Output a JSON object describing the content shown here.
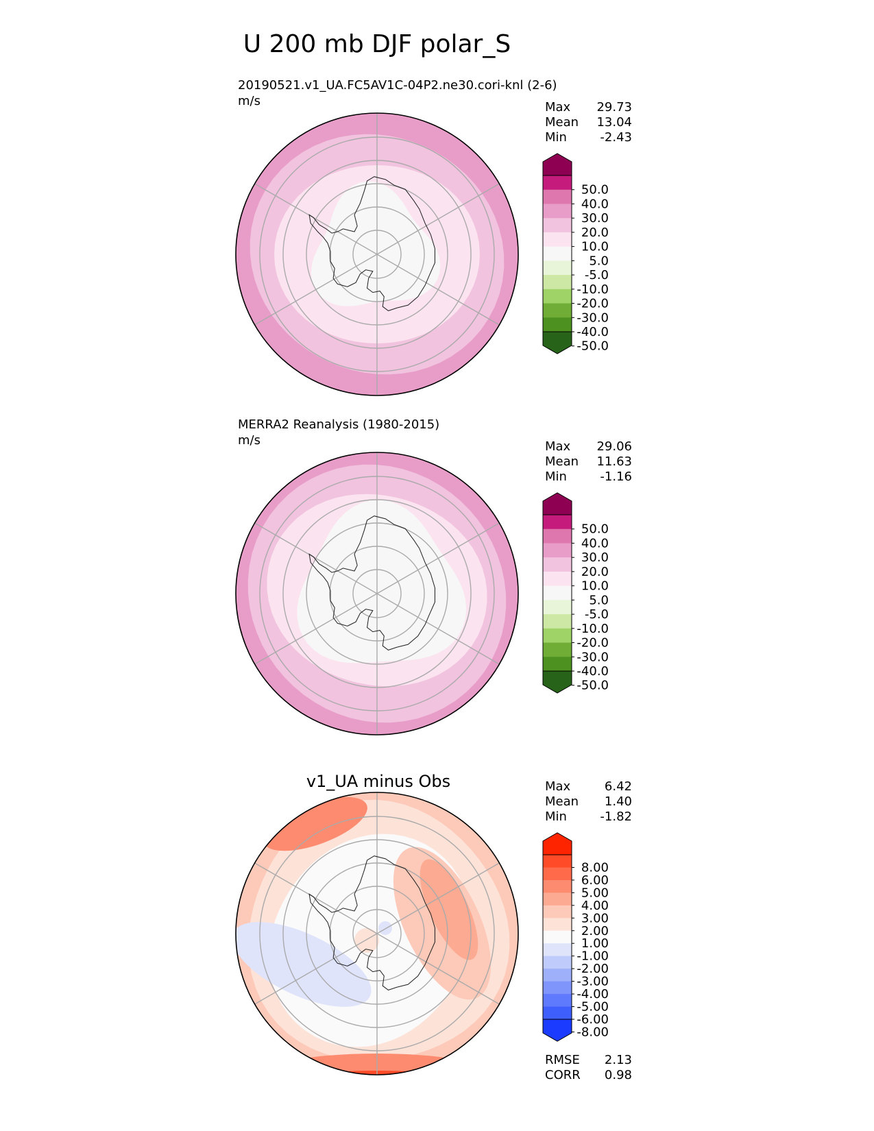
{
  "figure": {
    "title": "U 200 mb DJF polar_S",
    "panels": [
      {
        "title_left": "20190521.v1_UA.FC5AV1C-04P2.ne30.cori-knl (2-6)",
        "units": "m/s",
        "title_center": "",
        "stats": [
          {
            "label": "Max",
            "value": "29.73"
          },
          {
            "label": "Mean",
            "value": "13.04"
          },
          {
            "label": "Min",
            "value": "-2.43"
          }
        ],
        "colorbar": {
          "extend": "both",
          "ticks": [
            "50.0",
            "40.0",
            "30.0",
            "20.0",
            "10.0",
            "5.0",
            "-5.0",
            "-10.0",
            "-20.0",
            "-30.0",
            "-40.0",
            "-50.0"
          ],
          "colors": [
            "#8e0152",
            "#c51b7d",
            "#de77ae",
            "#e89dc8",
            "#f1c3df",
            "#fbe3ef",
            "#f7f7f7",
            "#e9f5d9",
            "#cce8a4",
            "#9fd267",
            "#6fad37",
            "#4d9221",
            "#276419"
          ]
        }
      },
      {
        "title_left": "MERRA2 Reanalysis (1980-2015)",
        "units": "m/s",
        "title_center": "",
        "stats": [
          {
            "label": "Max",
            "value": "29.06"
          },
          {
            "label": "Mean",
            "value": "11.63"
          },
          {
            "label": "Min",
            "value": "-1.16"
          }
        ],
        "colorbar": {
          "extend": "both",
          "ticks": [
            "50.0",
            "40.0",
            "30.0",
            "20.0",
            "10.0",
            "5.0",
            "-5.0",
            "-10.0",
            "-20.0",
            "-30.0",
            "-40.0",
            "-50.0"
          ],
          "colors": [
            "#8e0152",
            "#c51b7d",
            "#de77ae",
            "#e89dc8",
            "#f1c3df",
            "#fbe3ef",
            "#f7f7f7",
            "#e9f5d9",
            "#cce8a4",
            "#9fd267",
            "#6fad37",
            "#4d9221",
            "#276419"
          ]
        }
      },
      {
        "title_left": "",
        "units": "",
        "title_center": "v1_UA minus Obs",
        "stats": [
          {
            "label": "Max",
            "value": "6.42"
          },
          {
            "label": "Mean",
            "value": "1.40"
          },
          {
            "label": "Min",
            "value": "-1.82"
          }
        ],
        "extra_stats": [
          {
            "label": "RMSE",
            "value": "2.13"
          },
          {
            "label": "CORR",
            "value": "0.98"
          }
        ],
        "colorbar": {
          "extend": "both",
          "ticks": [
            "8.00",
            "6.00",
            "5.00",
            "4.00",
            "3.00",
            "2.00",
            "1.00",
            "-1.00",
            "-2.00",
            "-3.00",
            "-4.00",
            "-5.00",
            "-6.00",
            "-8.00"
          ],
          "colors": [
            "#ff2400",
            "#ff4b28",
            "#ff6a4a",
            "#fd8b70",
            "#fdaa92",
            "#fdc9b8",
            "#fde2d8",
            "#fafafa",
            "#dfe4fb",
            "#bfcbfa",
            "#9fb0fb",
            "#7f95fc",
            "#5f7afd",
            "#3f5ffd",
            "#1b3cfe"
          ]
        }
      }
    ]
  },
  "chart_data": [
    {
      "type": "heatmap",
      "projection": "south-polar-stereographic",
      "title": "20190521.v1_UA.FC5AV1C-04P2.ne30.cori-knl (2-6)",
      "units": "m/s",
      "field_by_latitude": [
        {
          "lat_range": [
            -90,
            -80
          ],
          "value_range": [
            -5,
            5
          ]
        },
        {
          "lat_range": [
            -80,
            -65
          ],
          "value_range": [
            5,
            10
          ]
        },
        {
          "lat_range": [
            -65,
            -55
          ],
          "value_range": [
            10,
            20
          ]
        },
        {
          "lat_range": [
            -55,
            -40
          ],
          "value_range": [
            20,
            30
          ]
        }
      ],
      "stats": {
        "max": 29.73,
        "mean": 13.04,
        "min": -2.43
      },
      "levels": [
        -50,
        -40,
        -30,
        -20,
        -10,
        -5,
        5,
        10,
        20,
        30,
        40,
        50
      ],
      "grid": true
    },
    {
      "type": "heatmap",
      "projection": "south-polar-stereographic",
      "title": "MERRA2 Reanalysis (1980-2015)",
      "units": "m/s",
      "field_by_latitude": [
        {
          "lat_range": [
            -90,
            -72
          ],
          "value_range": [
            -5,
            5
          ]
        },
        {
          "lat_range": [
            -72,
            -60
          ],
          "value_range": [
            5,
            10
          ]
        },
        {
          "lat_range": [
            -60,
            -50
          ],
          "value_range": [
            10,
            20
          ]
        },
        {
          "lat_range": [
            -50,
            -40
          ],
          "value_range": [
            20,
            30
          ]
        }
      ],
      "stats": {
        "max": 29.06,
        "mean": 11.63,
        "min": -1.16
      },
      "levels": [
        -50,
        -40,
        -30,
        -20,
        -10,
        -5,
        5,
        10,
        20,
        30,
        40,
        50
      ],
      "grid": true
    },
    {
      "type": "heatmap",
      "projection": "south-polar-stereographic",
      "title": "v1_UA minus Obs",
      "field_regions": [
        {
          "region": "outer ring (lat -45 to -40)",
          "value_range": [
            2,
            5
          ]
        },
        {
          "region": "Pacific sector mid-latitudes",
          "value_range": [
            -2,
            -1
          ]
        },
        {
          "region": "East Antarctic coast",
          "value_range": [
            2,
            4
          ]
        },
        {
          "region": "upper-left mid-latitudes",
          "value_range": [
            3,
            5
          ]
        }
      ],
      "stats": {
        "max": 6.42,
        "mean": 1.4,
        "min": -1.82,
        "rmse": 2.13,
        "corr": 0.98
      },
      "levels": [
        -8,
        -6,
        -5,
        -4,
        -3,
        -2,
        -1,
        1,
        2,
        3,
        4,
        5,
        6,
        8
      ],
      "grid": true
    }
  ]
}
